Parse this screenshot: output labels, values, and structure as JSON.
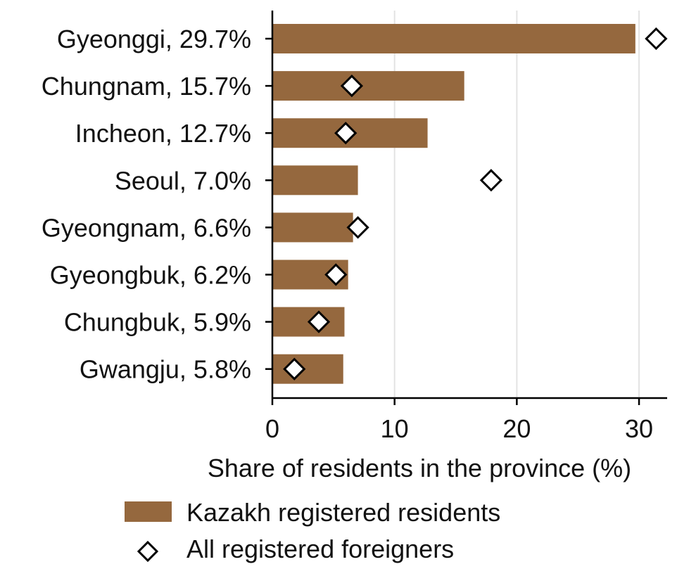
{
  "chart_data": {
    "type": "bar",
    "orientation": "horizontal",
    "categories": [
      "Gyeonggi, 29.7%",
      "Chungnam, 15.7%",
      "Incheon, 12.7%",
      "Seoul, 7.0%",
      "Gyeongnam, 6.6%",
      "Gyeongbuk, 6.2%",
      "Chungbuk, 5.9%",
      "Gwangju, 5.8%"
    ],
    "series": [
      {
        "name": "Kazakh registered residents",
        "mark": "bar",
        "color": "#95683e",
        "values": [
          29.7,
          15.7,
          12.7,
          7.0,
          6.6,
          6.2,
          5.9,
          5.8
        ]
      },
      {
        "name": "All registered foreigners",
        "mark": "diamond",
        "color": "#000000",
        "values": [
          31.4,
          6.5,
          6.0,
          17.9,
          7.0,
          5.2,
          3.8,
          1.8
        ]
      }
    ],
    "xlabel": "Share of residents in the province (%)",
    "ylabel": "",
    "xlim": [
      0,
      32.3
    ],
    "xticks": [
      0,
      10,
      20,
      30
    ],
    "grid": "vertical",
    "legend": "bottom"
  }
}
